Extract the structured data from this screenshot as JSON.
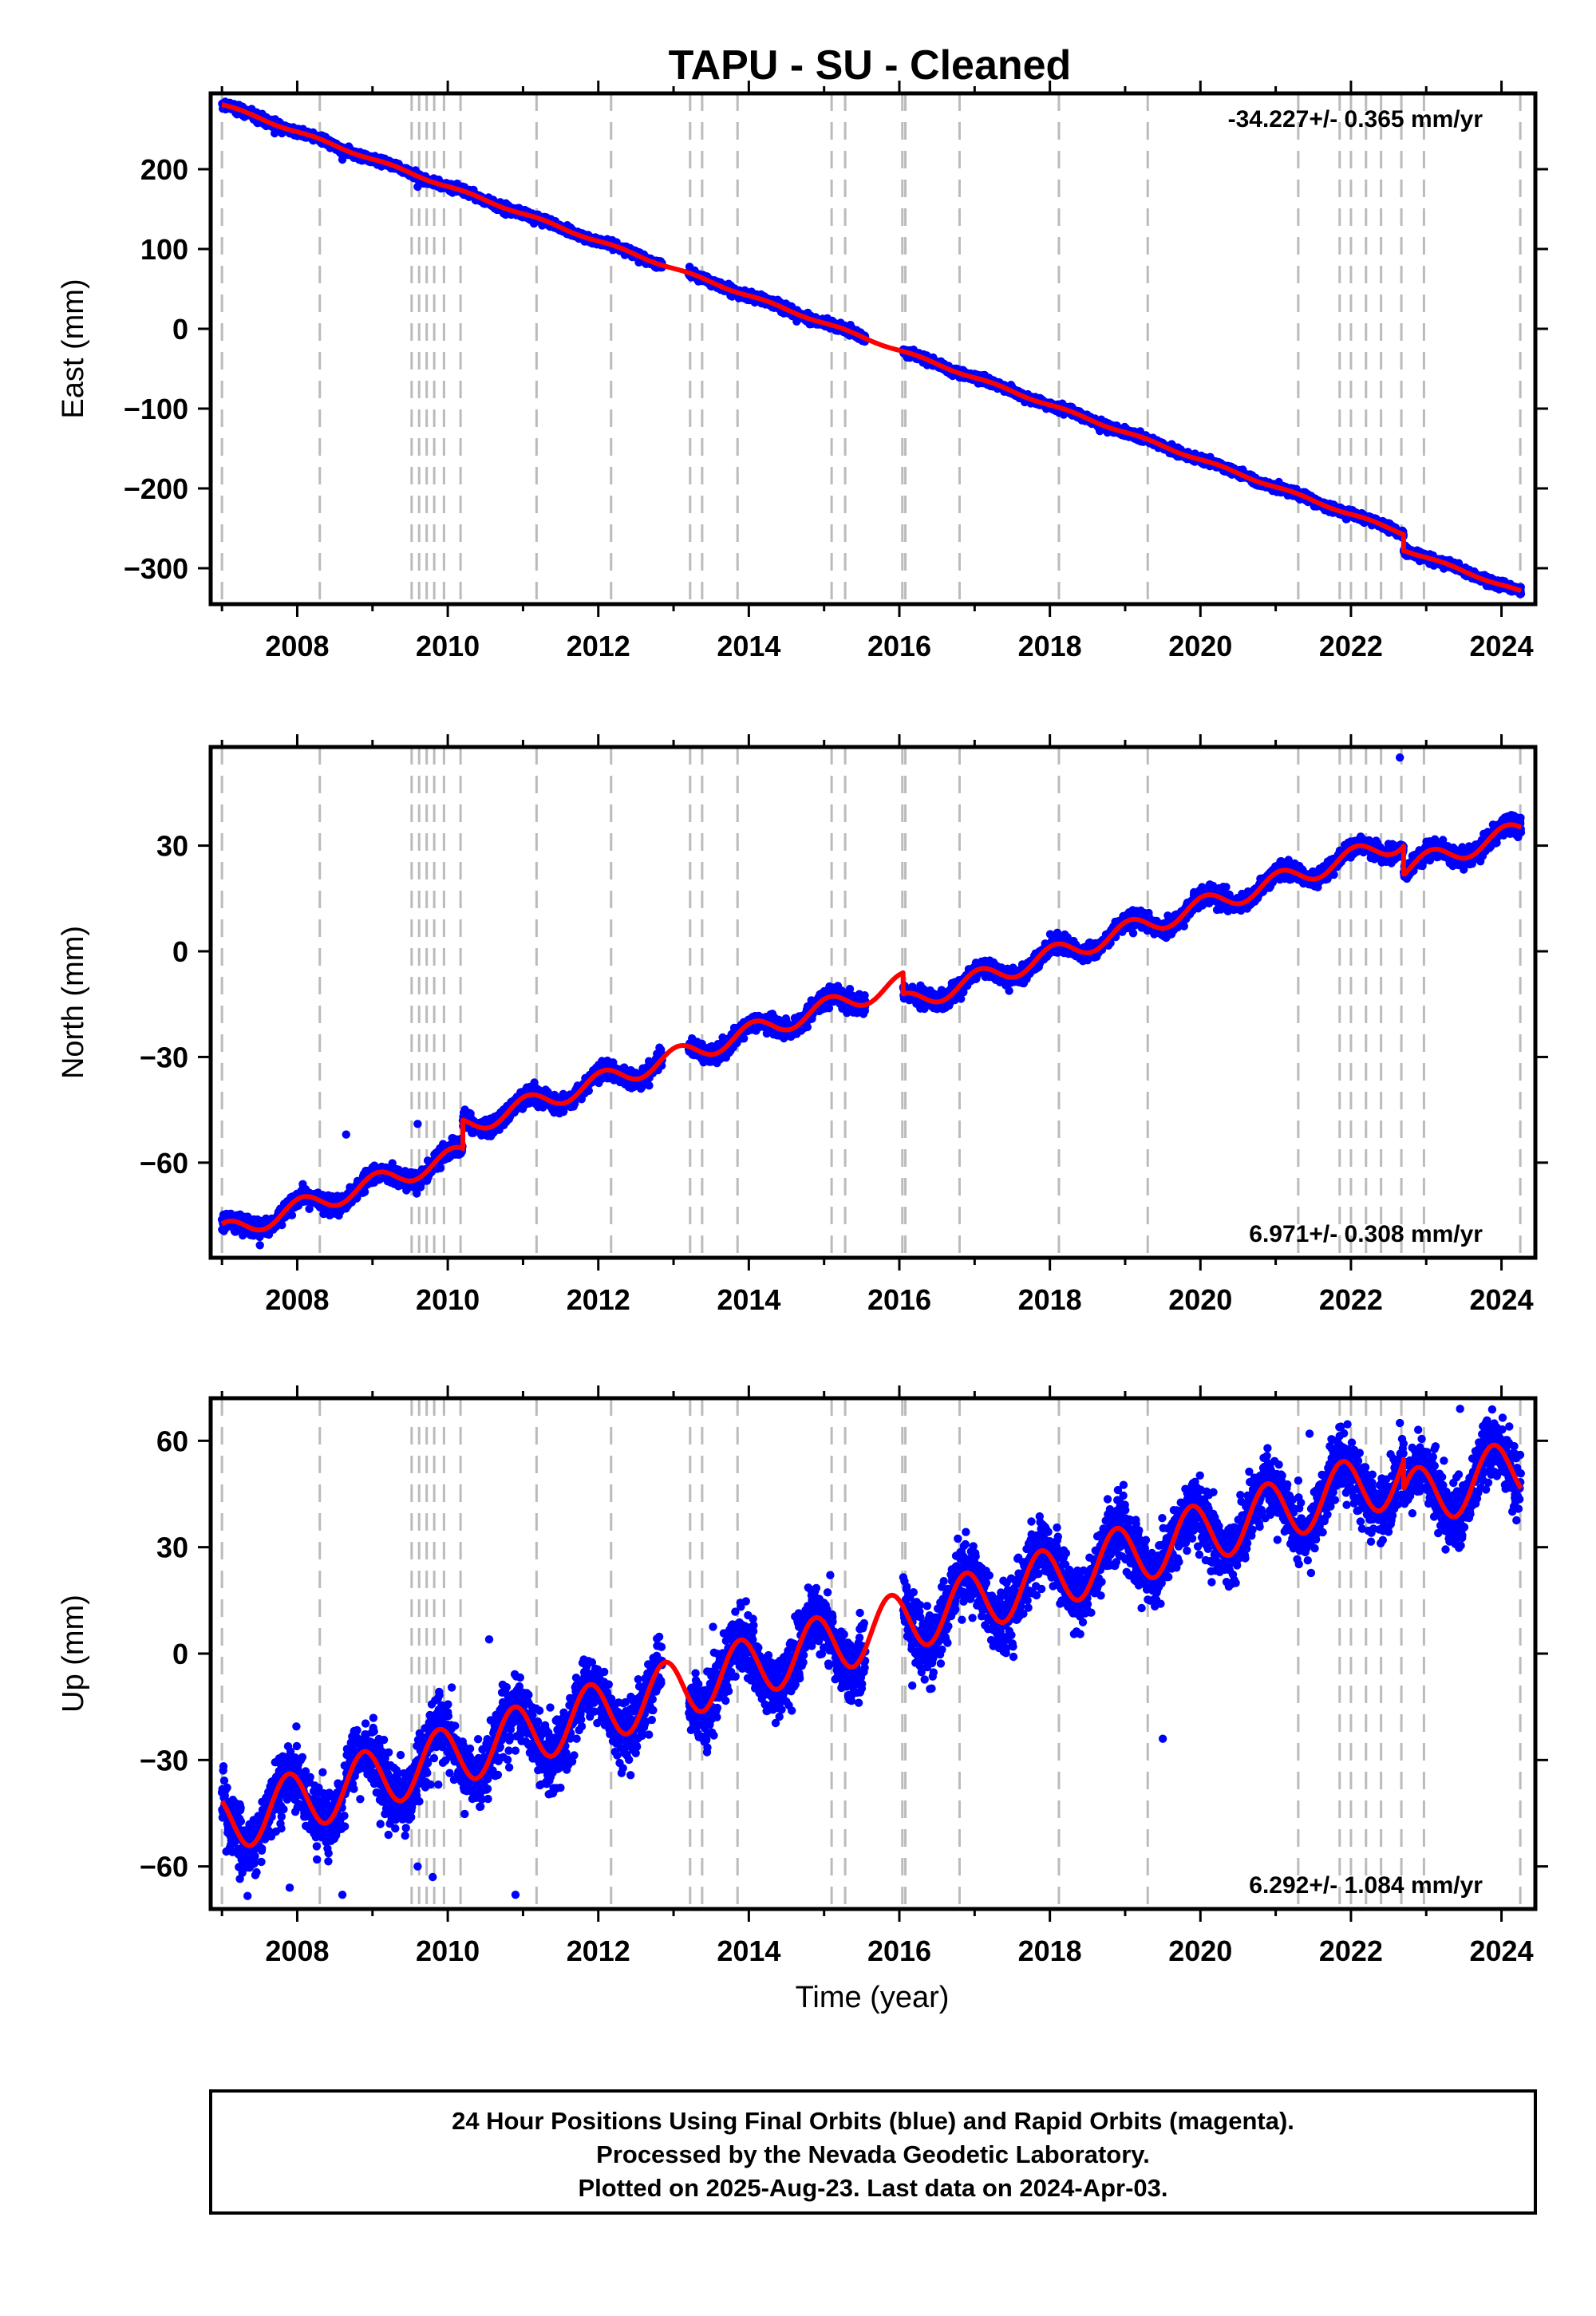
{
  "figure": {
    "title": "TAPU  - SU - Cleaned",
    "xlabel": "Time (year)",
    "colors": {
      "points": "#0000ff",
      "model": "#ff0000",
      "event_lines": "#bbbbbb",
      "frame": "#000000"
    }
  },
  "caption": {
    "lines": [
      "24 Hour Positions Using Final Orbits (blue) and Rapid Orbits (magenta).",
      "Processed by the Nevada Geodetic Laboratory.",
      "Plotted on 2025-Aug-23. Last data on 2024-Apr-03."
    ]
  },
  "chart_data": [
    {
      "type": "scatter",
      "id": "east",
      "ylabel": "East (mm)",
      "xlim": [
        2006.85,
        2024.45
      ],
      "ylim": [
        -345,
        295
      ],
      "xticks": [
        2008,
        2010,
        2012,
        2014,
        2016,
        2018,
        2020,
        2022,
        2024
      ],
      "yticks": [
        -300,
        -200,
        -100,
        0,
        100,
        200
      ],
      "rate_label": "-34.227+/- 0.365 mm/yr",
      "rate_position": "top-right",
      "grid": false,
      "event_lines": [
        2007.0,
        2008.3,
        2009.52,
        2009.62,
        2009.72,
        2009.82,
        2009.95,
        2010.17,
        2011.18,
        2012.17,
        2013.22,
        2013.38,
        2013.85,
        2015.1,
        2015.28,
        2016.04,
        2016.08,
        2016.8,
        2018.12,
        2019.3,
        2021.3,
        2021.85,
        2022.0,
        2022.2,
        2022.4,
        2022.67,
        2022.97,
        2024.25
      ],
      "trend": {
        "t0": 2007.0,
        "y0": 281,
        "rate": -34.227
      },
      "seasonal": {
        "amplitude": 1.5,
        "phase": 0.0
      },
      "noise_sd": 2.5,
      "offsets": [
        {
          "t": 2022.7,
          "dy": -20
        }
      ],
      "gaps": [
        [
          2012.85,
          2013.2
        ],
        [
          2015.55,
          2016.05
        ]
      ],
      "outliers": [
        {
          "x": 2007.7,
          "y": 245
        },
        {
          "x": 2008.6,
          "y": 212
        },
        {
          "x": 2009.6,
          "y": 178
        }
      ]
    },
    {
      "type": "scatter",
      "id": "north",
      "ylabel": "North (mm)",
      "xlim": [
        2006.85,
        2024.45
      ],
      "ylim": [
        -87,
        58
      ],
      "xticks": [
        2008,
        2010,
        2012,
        2014,
        2016,
        2018,
        2020,
        2022,
        2024
      ],
      "yticks": [
        -60,
        -30,
        0,
        30
      ],
      "rate_label": "6.971+/- 0.308 mm/yr",
      "rate_position": "bottom-right",
      "grid": false,
      "event_lines": [
        2007.0,
        2008.3,
        2009.52,
        2009.62,
        2009.72,
        2009.82,
        2009.95,
        2010.17,
        2011.18,
        2012.17,
        2013.22,
        2013.38,
        2013.85,
        2015.1,
        2015.28,
        2016.04,
        2016.08,
        2016.8,
        2018.12,
        2019.3,
        2021.3,
        2021.85,
        2022.0,
        2022.2,
        2022.4,
        2022.67,
        2022.97,
        2024.25
      ],
      "trend": {
        "t0": 2007.0,
        "y0": -80,
        "rate": 6.971
      },
      "seasonal": {
        "amplitude": 2.8,
        "phase": 1.2
      },
      "noise_sd": 1.2,
      "offsets": [
        {
          "t": 2010.2,
          "dy": 8
        },
        {
          "t": 2016.05,
          "dy": -6
        },
        {
          "t": 2022.7,
          "dy": -8
        }
      ],
      "gaps": [
        [
          2012.85,
          2013.2
        ],
        [
          2015.55,
          2016.05
        ]
      ],
      "outliers": [
        {
          "x": 2008.65,
          "y": -52
        },
        {
          "x": 2009.6,
          "y": -49
        },
        {
          "x": 2022.65,
          "y": 55
        }
      ]
    },
    {
      "type": "scatter",
      "id": "up",
      "ylabel": "Up (mm)",
      "xlim": [
        2006.85,
        2024.45
      ],
      "ylim": [
        -72,
        72
      ],
      "xticks": [
        2008,
        2010,
        2012,
        2014,
        2016,
        2018,
        2020,
        2022,
        2024
      ],
      "yticks": [
        -60,
        -30,
        0,
        30,
        60
      ],
      "rate_label": "6.292+/- 1.084 mm/yr",
      "rate_position": "bottom-right",
      "grid": false,
      "event_lines": [
        2007.0,
        2008.3,
        2009.52,
        2009.62,
        2009.72,
        2009.82,
        2009.95,
        2010.17,
        2011.18,
        2012.17,
        2013.22,
        2013.38,
        2013.85,
        2015.1,
        2015.28,
        2016.04,
        2016.08,
        2016.8,
        2018.12,
        2019.3,
        2021.3,
        2021.85,
        2022.0,
        2022.2,
        2022.4,
        2022.67,
        2022.97,
        2024.25
      ],
      "trend": {
        "t0": 2007.0,
        "y0": -48,
        "rate": 6.292
      },
      "seasonal": {
        "amplitude": 8.5,
        "phase": 2.3
      },
      "noise_sd": 4.5,
      "offsets": [
        {
          "t": 2022.7,
          "dy": -8
        }
      ],
      "gaps": [
        [
          2012.85,
          2013.2
        ],
        [
          2015.55,
          2016.05
        ]
      ],
      "outliers": [
        {
          "x": 2007.9,
          "y": -66
        },
        {
          "x": 2008.6,
          "y": -68
        },
        {
          "x": 2009.6,
          "y": -60
        },
        {
          "x": 2009.8,
          "y": -63
        },
        {
          "x": 2010.55,
          "y": 4
        },
        {
          "x": 2010.9,
          "y": -68
        },
        {
          "x": 2019.5,
          "y": -24
        },
        {
          "x": 2021.45,
          "y": 62
        },
        {
          "x": 2022.65,
          "y": 65
        },
        {
          "x": 2023.45,
          "y": 69
        }
      ]
    }
  ]
}
